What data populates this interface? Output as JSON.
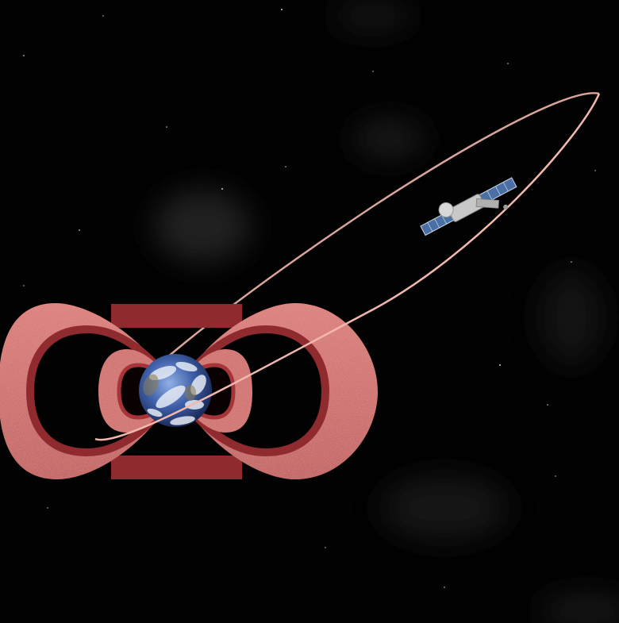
{
  "scene": {
    "subject": "satellite-orbit-illustration",
    "colors": {
      "space": "#020202",
      "nebula": "#3a3a3a",
      "belt": "#c9635f",
      "belt_shadow": "#7a1f24",
      "belt_inner": "#a53538",
      "orbit": "#f2b8ad",
      "earth_ocean": "#3e5fa8",
      "earth_cloud": "#e6ecf5",
      "panel": "#4a6fa5",
      "body": "#c8c8c8"
    },
    "icons": {
      "earth": "earth-globe-icon",
      "satellite": "satellite-icon"
    }
  }
}
